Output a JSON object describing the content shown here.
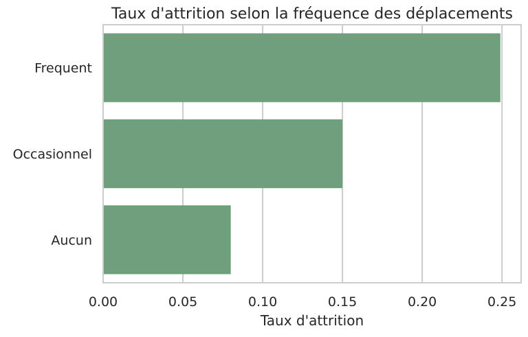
{
  "chart_data": {
    "type": "bar",
    "orientation": "horizontal",
    "title": "Taux d'attrition selon la fréquence des déplacements",
    "xlabel": "Taux d'attrition",
    "ylabel": "",
    "categories": [
      "Frequent",
      "Occasionnel",
      "Aucun"
    ],
    "values": [
      0.249,
      0.15,
      0.08
    ],
    "xlim": [
      0,
      0.262
    ],
    "xticks": [
      0.0,
      0.05,
      0.1,
      0.15,
      0.2,
      0.25
    ],
    "xtick_labels": [
      "0.00",
      "0.05",
      "0.10",
      "0.15",
      "0.20",
      "0.25"
    ],
    "grid": "vertical",
    "bar_color": "#6f9f7c"
  }
}
